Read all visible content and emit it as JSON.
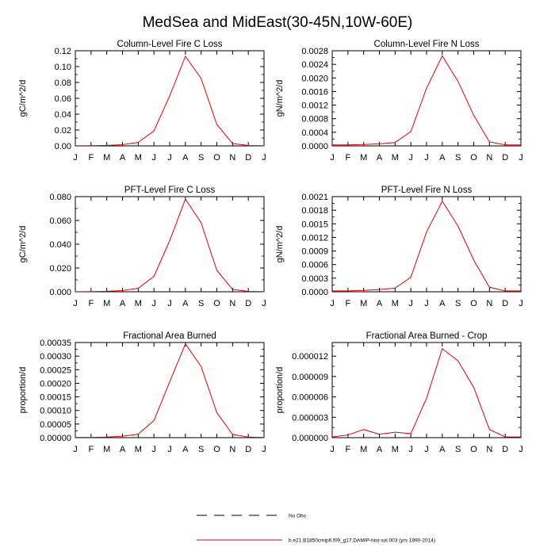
{
  "figure": {
    "title": "MedSea and MidEast(30-45N,10W-60E)"
  },
  "legend": {
    "position": "bottom-center",
    "items": [
      {
        "label": "No Obs",
        "style": "dashed",
        "color": "#000000"
      },
      {
        "label": "b.e21.B1850cmip6.f09_g17.DAMIP-hist-sol.003 (yrs 1990-2014)",
        "style": "solid",
        "color": "#e60000"
      }
    ]
  },
  "chart_data": [
    {
      "type": "line",
      "title": "Column-Level Fire C Loss",
      "ylabel": "gC/m^2/d",
      "x": [
        "J",
        "F",
        "M",
        "A",
        "M",
        "J",
        "J",
        "A",
        "S",
        "O",
        "N",
        "D",
        "J"
      ],
      "ylim": [
        0,
        0.12
      ],
      "yticks": [
        "0.00",
        "0.02",
        "0.04",
        "0.06",
        "0.08",
        "0.10",
        "0.12"
      ],
      "ytick_values": [
        0,
        0.02,
        0.04,
        0.06,
        0.08,
        0.1,
        0.12
      ],
      "series": [
        {
          "color": "#e60000",
          "values": [
            0.0002,
            0.0003,
            0.0006,
            0.0015,
            0.0045,
            0.019,
            0.063,
            0.113,
            0.085,
            0.027,
            0.003,
            0.0005,
            0.0003
          ]
        }
      ]
    },
    {
      "type": "line",
      "title": "Column-Level Fire N Loss",
      "ylabel": "gN/m^2/d",
      "x": [
        "J",
        "F",
        "M",
        "A",
        "M",
        "J",
        "J",
        "A",
        "S",
        "O",
        "N",
        "D",
        "J"
      ],
      "ylim": [
        0,
        0.0028
      ],
      "yticks": [
        "0.0000",
        "0.0004",
        "0.0008",
        "0.0012",
        "0.0016",
        "0.0020",
        "0.0024",
        "0.0028"
      ],
      "ytick_values": [
        0,
        0.0004,
        0.0008,
        0.0012,
        0.0016,
        0.002,
        0.0024,
        0.0028
      ],
      "series": [
        {
          "color": "#e60000",
          "values": [
            3e-05,
            3e-05,
            4e-05,
            6e-05,
            0.0001,
            0.00042,
            0.0017,
            0.00265,
            0.0019,
            0.0009,
            0.00012,
            3e-05,
            3e-05
          ]
        }
      ]
    },
    {
      "type": "line",
      "title": "PFT-Level Fire C Loss",
      "ylabel": "gC/m^2/d",
      "x": [
        "J",
        "F",
        "M",
        "A",
        "M",
        "J",
        "J",
        "A",
        "S",
        "O",
        "N",
        "D",
        "J"
      ],
      "ylim": [
        0,
        0.08
      ],
      "yticks": [
        "0.000",
        "0.020",
        "0.040",
        "0.060",
        "0.080"
      ],
      "ytick_values": [
        0,
        0.02,
        0.04,
        0.06,
        0.08
      ],
      "series": [
        {
          "color": "#e60000",
          "values": [
            0.0001,
            0.0002,
            0.0004,
            0.001,
            0.003,
            0.013,
            0.043,
            0.078,
            0.058,
            0.018,
            0.002,
            0.0003,
            0.0002
          ]
        }
      ]
    },
    {
      "type": "line",
      "title": "PFT-Level Fire N Loss",
      "ylabel": "gN/m^2/d",
      "x": [
        "J",
        "F",
        "M",
        "A",
        "M",
        "J",
        "J",
        "A",
        "S",
        "O",
        "N",
        "D",
        "J"
      ],
      "ylim": [
        0,
        0.0021
      ],
      "yticks": [
        "0.0000",
        "0.0003",
        "0.0006",
        "0.0009",
        "0.0012",
        "0.0015",
        "0.0018",
        "0.0021"
      ],
      "ytick_values": [
        0,
        0.0003,
        0.0006,
        0.0009,
        0.0012,
        0.0015,
        0.0018,
        0.0021
      ],
      "series": [
        {
          "color": "#e60000",
          "values": [
            2e-05,
            2e-05,
            3e-05,
            5e-05,
            8e-05,
            0.00032,
            0.00132,
            0.002,
            0.00145,
            0.0007,
            0.0001,
            2e-05,
            2e-05
          ]
        }
      ]
    },
    {
      "type": "line",
      "title": "Fractional Area Burned",
      "ylabel": "proportion/d",
      "x": [
        "J",
        "F",
        "M",
        "A",
        "M",
        "J",
        "J",
        "A",
        "S",
        "O",
        "N",
        "D",
        "J"
      ],
      "ylim": [
        0,
        0.00035
      ],
      "yticks": [
        "0.00000",
        "0.00005",
        "0.00010",
        "0.00015",
        "0.00020",
        "0.00025",
        "0.00030",
        "0.00035"
      ],
      "ytick_values": [
        0,
        5e-05,
        0.0001,
        0.00015,
        0.0002,
        0.00025,
        0.0003,
        0.00035
      ],
      "series": [
        {
          "color": "#e60000",
          "values": [
            1e-06,
            1e-06,
            2e-06,
            5e-06,
            1.3e-05,
            6.3e-05,
            0.000205,
            0.000345,
            0.000262,
            9.2e-05,
            1.2e-05,
            2e-06,
            1e-06
          ]
        }
      ]
    },
    {
      "type": "line",
      "title": "Fractional Area Burned - Crop",
      "ylabel": "proportion/d",
      "x": [
        "J",
        "F",
        "M",
        "A",
        "M",
        "J",
        "J",
        "A",
        "S",
        "O",
        "N",
        "D",
        "J"
      ],
      "ylim": [
        0,
        1.4e-05
      ],
      "yticks": [
        "0.000000",
        "0.000003",
        "0.000006",
        "0.000009",
        "0.000012"
      ],
      "ytick_values": [
        0,
        3e-06,
        6e-06,
        9e-06,
        1.2e-05
      ],
      "series": [
        {
          "color": "#e60000",
          "values": [
            1e-07,
            4e-07,
            1.2e-06,
            5e-07,
            8e-07,
            6e-07,
            5.8e-06,
            1.31e-05,
            1.13e-05,
            7.4e-06,
            1.2e-06,
            1e-07,
            1e-07
          ]
        }
      ]
    }
  ]
}
